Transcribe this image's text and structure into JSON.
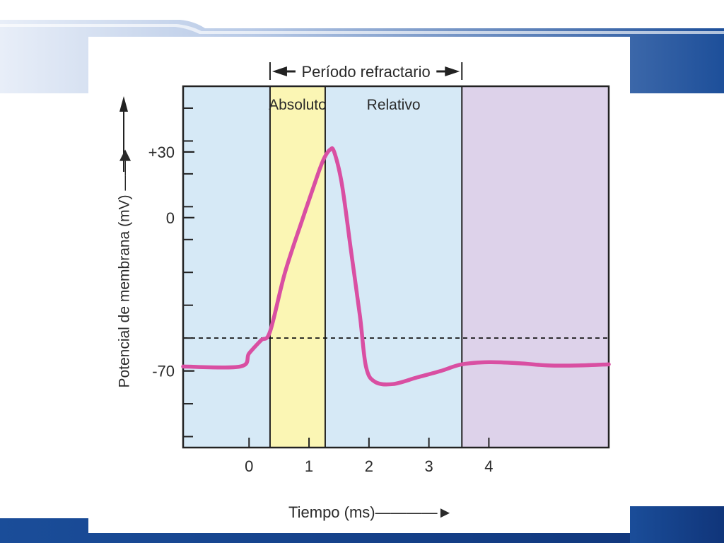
{
  "chart_data": {
    "type": "line",
    "title": "",
    "xlabel": "Tiempo (ms)",
    "ylabel": "Potencial de membrana (mV)",
    "xlim": [
      -1.1,
      6.0
    ],
    "ylim": [
      -105,
      60
    ],
    "x_ticks": [
      0,
      1,
      2,
      3,
      4
    ],
    "y_ticks": [
      {
        "value": 30,
        "label": "+30"
      },
      {
        "value": 0,
        "label": "0"
      },
      {
        "value": -70,
        "label": "-70"
      }
    ],
    "threshold_mV": -55,
    "period_header": "Período refractario",
    "periods": [
      {
        "label": "Absoluto",
        "start": 0.35,
        "end": 1.27,
        "color": "#fbf6b4"
      },
      {
        "label": "Relativo",
        "start": 1.27,
        "end": 3.55,
        "color": "#d6e9f6"
      }
    ],
    "after_period_color": "#ddd2ea",
    "baseline_color": "#d6e9f6",
    "series": [
      {
        "color": "#d94fa2",
        "x": [
          -1.1,
          -0.15,
          0.0,
          0.2,
          0.35,
          0.6,
          0.9,
          1.15,
          1.25,
          1.35,
          1.42,
          1.55,
          1.7,
          1.85,
          1.95,
          2.1,
          2.4,
          2.8,
          3.2,
          3.55,
          4.0,
          4.5,
          5.0,
          5.5,
          6.0
        ],
        "y": [
          -68,
          -68,
          -62,
          -56,
          -52,
          -25,
          0,
          20,
          27,
          31,
          30,
          15,
          -15,
          -45,
          -68,
          -75,
          -76,
          -73,
          -70,
          -67,
          -66,
          -66.5,
          -67.5,
          -67.5,
          -67
        ]
      }
    ]
  }
}
